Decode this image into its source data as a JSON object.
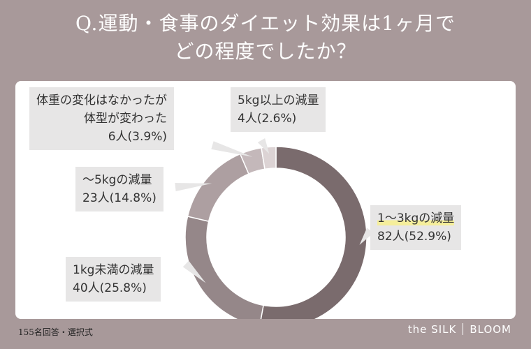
{
  "title": {
    "line1": "Q.運動・食事のダイエット効果は1ヶ月で",
    "line2": "どの程度でしたか？"
  },
  "chart_data": {
    "type": "pie",
    "title": "Q.運動・食事のダイエット効果は1ヶ月でどの程度でしたか？",
    "total": 155,
    "slices": [
      {
        "label": "1〜3kgの減量",
        "count": 82,
        "pct": "52.9%",
        "value_text": "82人(52.9%)",
        "color": "#7a6b6d"
      },
      {
        "label": "1kg未満の減量",
        "count": 40,
        "pct": "25.8%",
        "value_text": "40人(25.8%)",
        "color": "#958789"
      },
      {
        "label": "〜5kgの減量",
        "count": 23,
        "pct": "14.8%",
        "value_text": "23人(14.8%)",
        "color": "#ad9fa1"
      },
      {
        "label": "体重の変化はなかったが体型が変わった",
        "label_line1": "体重の変化はなかったが",
        "label_line2": "体型が変わった",
        "count": 6,
        "pct": "3.9%",
        "value_text": "6人(3.9%)",
        "color": "#c4b8ba"
      },
      {
        "label": "5kg以上の減量",
        "count": 4,
        "pct": "2.6%",
        "value_text": "4人(2.6%)",
        "color": "#dcd3d4"
      }
    ],
    "start": "12 o'clock",
    "direction": "clockwise",
    "legend": "none"
  },
  "footer": {
    "note": "155名回答・選択式",
    "brand_left": "the SILK",
    "brand_right": "BLOOM"
  },
  "colors": {
    "background": "#a8999a",
    "panel": "#ffffff",
    "label_box": "#e7e6e6",
    "highlight": "#f5ee9b"
  }
}
